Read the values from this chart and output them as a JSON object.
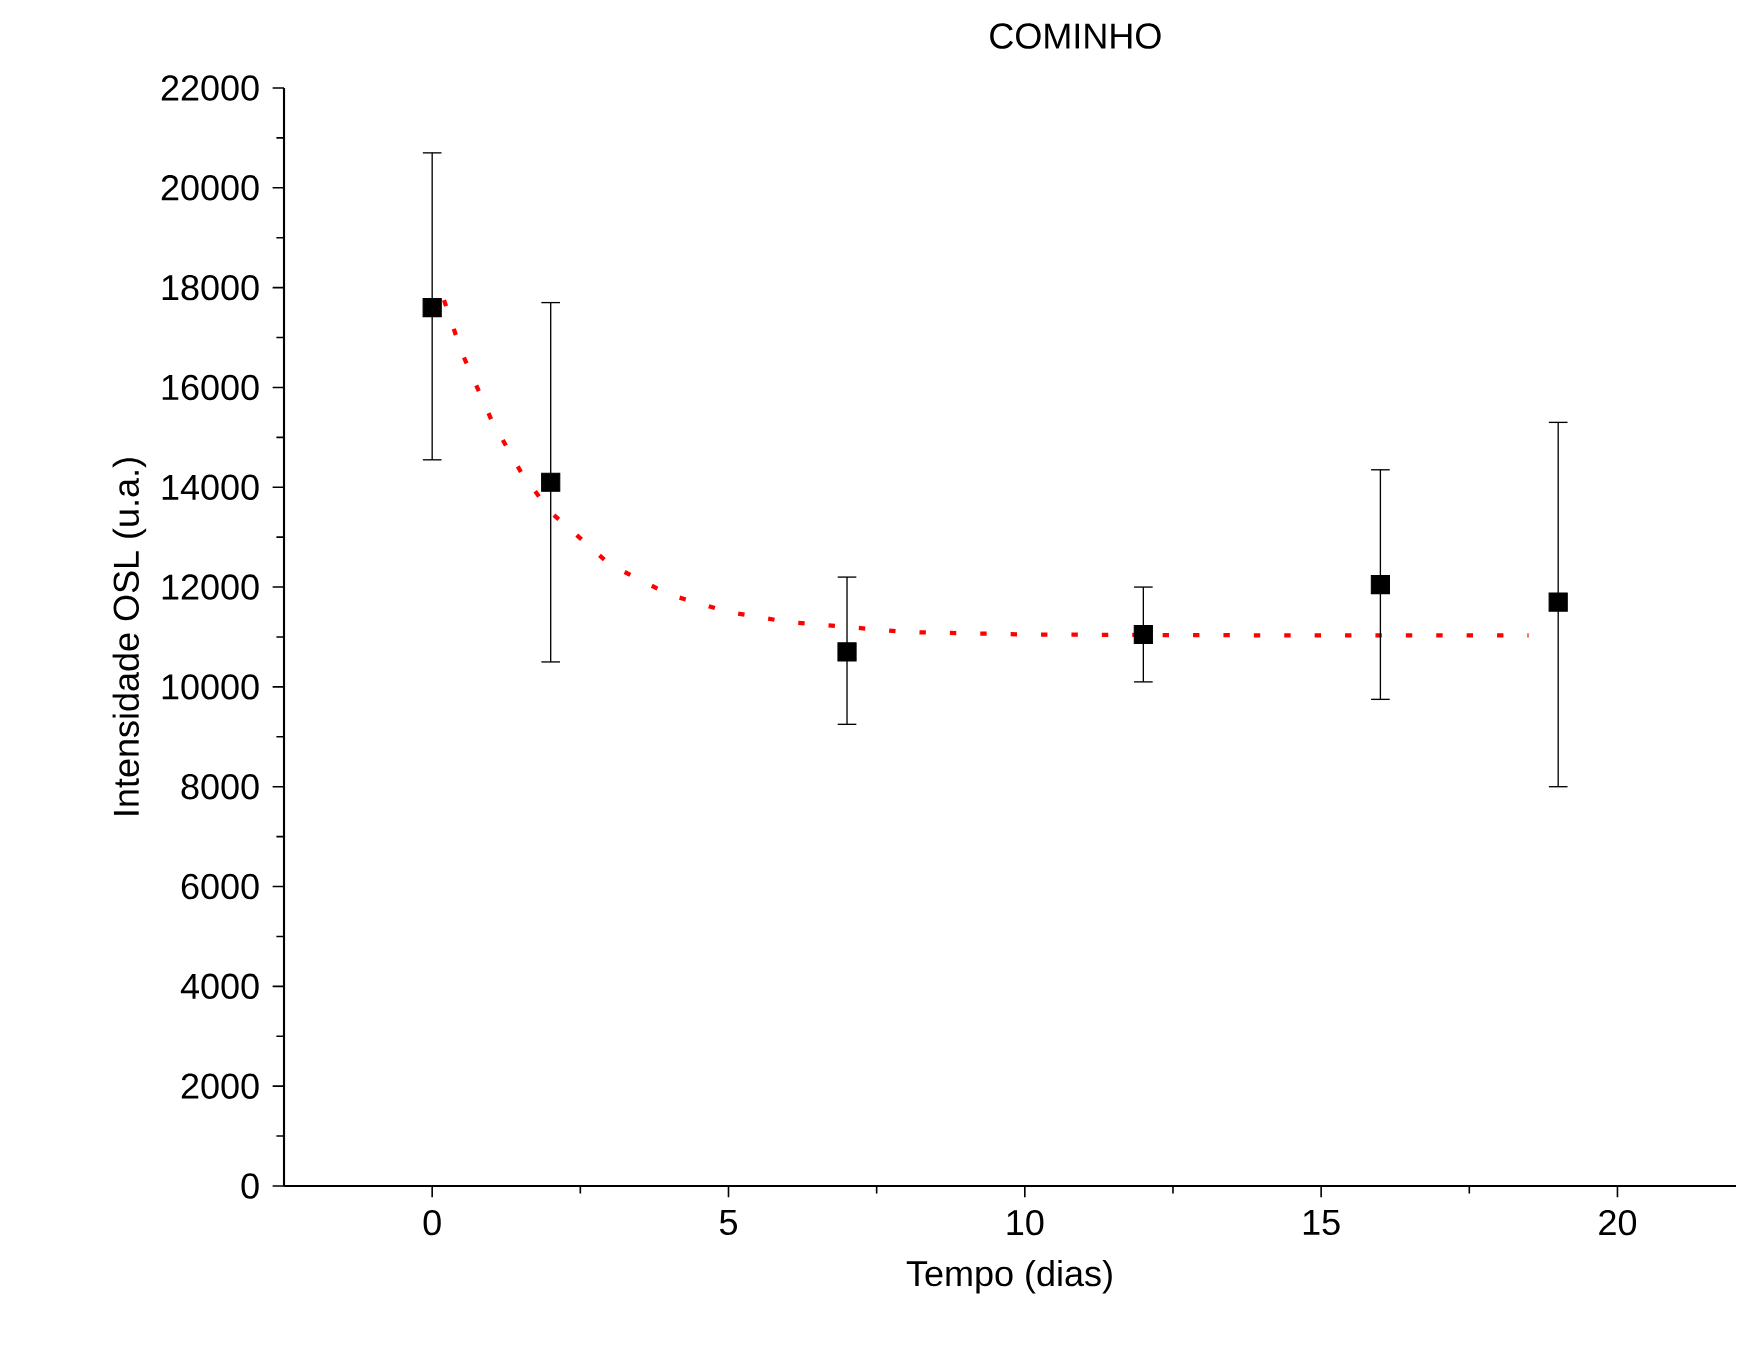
{
  "chart_data": {
    "type": "scatter",
    "title": "COMINHO",
    "xlabel": "Tempo (dias)",
    "ylabel": "Intensidade OSL (u.a.)",
    "x": [
      0,
      2,
      7,
      12,
      16,
      19
    ],
    "series": [
      {
        "color": "#000000",
        "marker": "square",
        "values": [
          17600,
          14100,
          10700,
          11050,
          12050,
          11700
        ],
        "errors": [
          [
            14550,
            20700
          ],
          [
            10500,
            17700
          ],
          [
            9250,
            12200
          ],
          [
            10100,
            12000
          ],
          [
            9750,
            14350
          ],
          [
            8000,
            15300
          ]
        ]
      },
      {
        "type": "line",
        "color": "#ff0000",
        "marker": "none",
        "line_style": "dotted",
        "x": [
          0.2,
          0.5,
          1,
          1.5,
          2,
          3,
          4,
          5,
          6,
          7,
          8,
          10,
          12,
          15,
          18.5
        ],
        "values": [
          17750,
          16700,
          15350,
          14300,
          13500,
          12450,
          11850,
          11500,
          11300,
          11200,
          11100,
          11050,
          11040,
          11030,
          11030
        ]
      }
    ],
    "xlim": [
      -2.5,
      22
    ],
    "ylim": [
      0,
      22000
    ],
    "xticks": [
      0,
      5,
      10,
      15,
      20
    ],
    "yticks": [
      0,
      2000,
      4000,
      6000,
      8000,
      10000,
      12000,
      14000,
      16000,
      18000,
      20000,
      22000
    ],
    "grid": false
  }
}
